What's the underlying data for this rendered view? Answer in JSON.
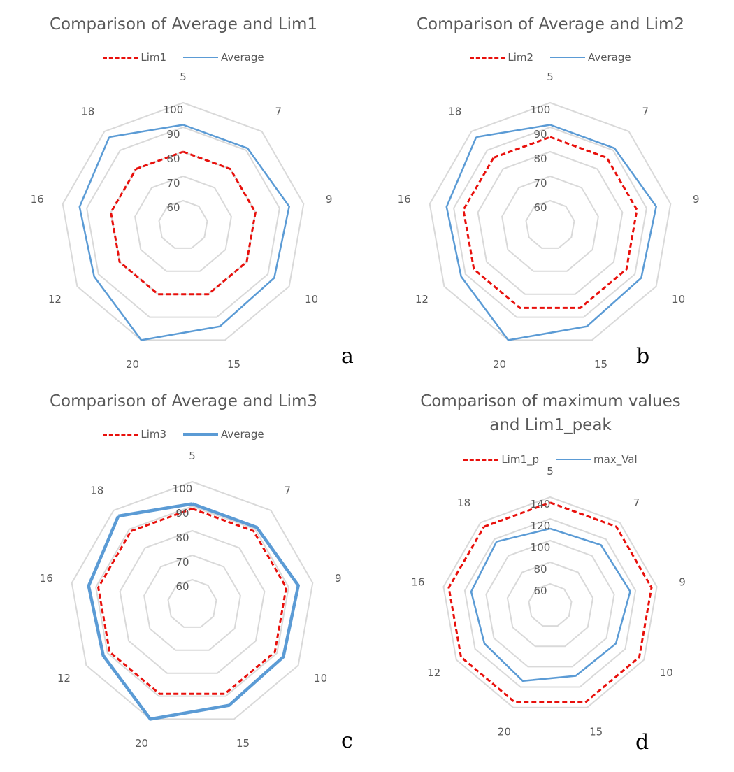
{
  "colors": {
    "limit": "#e8100c",
    "average": "#5b9bd5",
    "grid": "#d9d9d9",
    "text": "#595959"
  },
  "chart_data": [
    {
      "type": "radar",
      "panel_label": "a",
      "title": "Comparison of Average and Lim1",
      "categories": [
        "5",
        "7",
        "9",
        "10",
        "15",
        "20",
        "12",
        "16",
        "18"
      ],
      "rlim": [
        50,
        100
      ],
      "ticks": [
        60,
        70,
        80,
        90,
        100
      ],
      "legend_position": "top",
      "series": [
        {
          "name": "Lim1",
          "style": "dashed",
          "values": [
            80,
            80,
            80,
            80,
            80,
            80,
            80,
            80,
            80
          ]
        },
        {
          "name": "Average",
          "style": "solid",
          "values": [
            91,
            91,
            94,
            93,
            94,
            100,
            92,
            93,
            97
          ]
        }
      ]
    },
    {
      "type": "radar",
      "panel_label": "b",
      "title": "Comparison of Average and Lim2",
      "categories": [
        "5",
        "7",
        "9",
        "10",
        "15",
        "20",
        "12",
        "16",
        "18"
      ],
      "rlim": [
        50,
        100
      ],
      "ticks": [
        60,
        70,
        80,
        90,
        100
      ],
      "legend_position": "top",
      "series": [
        {
          "name": "Lim2",
          "style": "dashed",
          "values": [
            86,
            86,
            86,
            86,
            86,
            86,
            86,
            86,
            86
          ]
        },
        {
          "name": "Average",
          "style": "solid",
          "values": [
            91,
            91,
            94,
            93,
            94,
            100,
            92,
            93,
            97
          ]
        }
      ]
    },
    {
      "type": "radar",
      "panel_label": "c",
      "title": "Comparison of Average and Lim3",
      "categories": [
        "5",
        "7",
        "9",
        "10",
        "15",
        "20",
        "12",
        "16",
        "18"
      ],
      "rlim": [
        50,
        100
      ],
      "ticks": [
        60,
        70,
        80,
        90,
        100
      ],
      "legend_position": "top",
      "series": [
        {
          "name": "Lim3",
          "style": "dashed",
          "values": [
            89,
            89,
            89,
            89,
            89,
            89,
            89,
            89,
            89
          ]
        },
        {
          "name": "Average",
          "style": "solid-thick",
          "values": [
            91,
            91,
            94,
            93,
            94,
            100,
            92,
            93,
            97
          ]
        }
      ]
    },
    {
      "type": "radar",
      "panel_label": "d",
      "title": "Comparison of maximum values and Lim1_peak",
      "title_lines": [
        "Comparison of maximum values",
        "and Lim1_peak"
      ],
      "categories": [
        "5",
        "7",
        "9",
        "10",
        "15",
        "20",
        "12",
        "16",
        "18"
      ],
      "rlim": [
        40,
        140
      ],
      "ticks": [
        60,
        80,
        100,
        120,
        140
      ],
      "legend_position": "top",
      "series": [
        {
          "name": "Lim1_p",
          "style": "dashed",
          "values": [
            135,
            135,
            135,
            135,
            135,
            135,
            135,
            135,
            135
          ]
        },
        {
          "name": "max_Val",
          "style": "solid",
          "values": [
            111,
            113,
            115,
            110,
            109,
            114,
            110,
            114,
            117
          ]
        }
      ]
    }
  ]
}
